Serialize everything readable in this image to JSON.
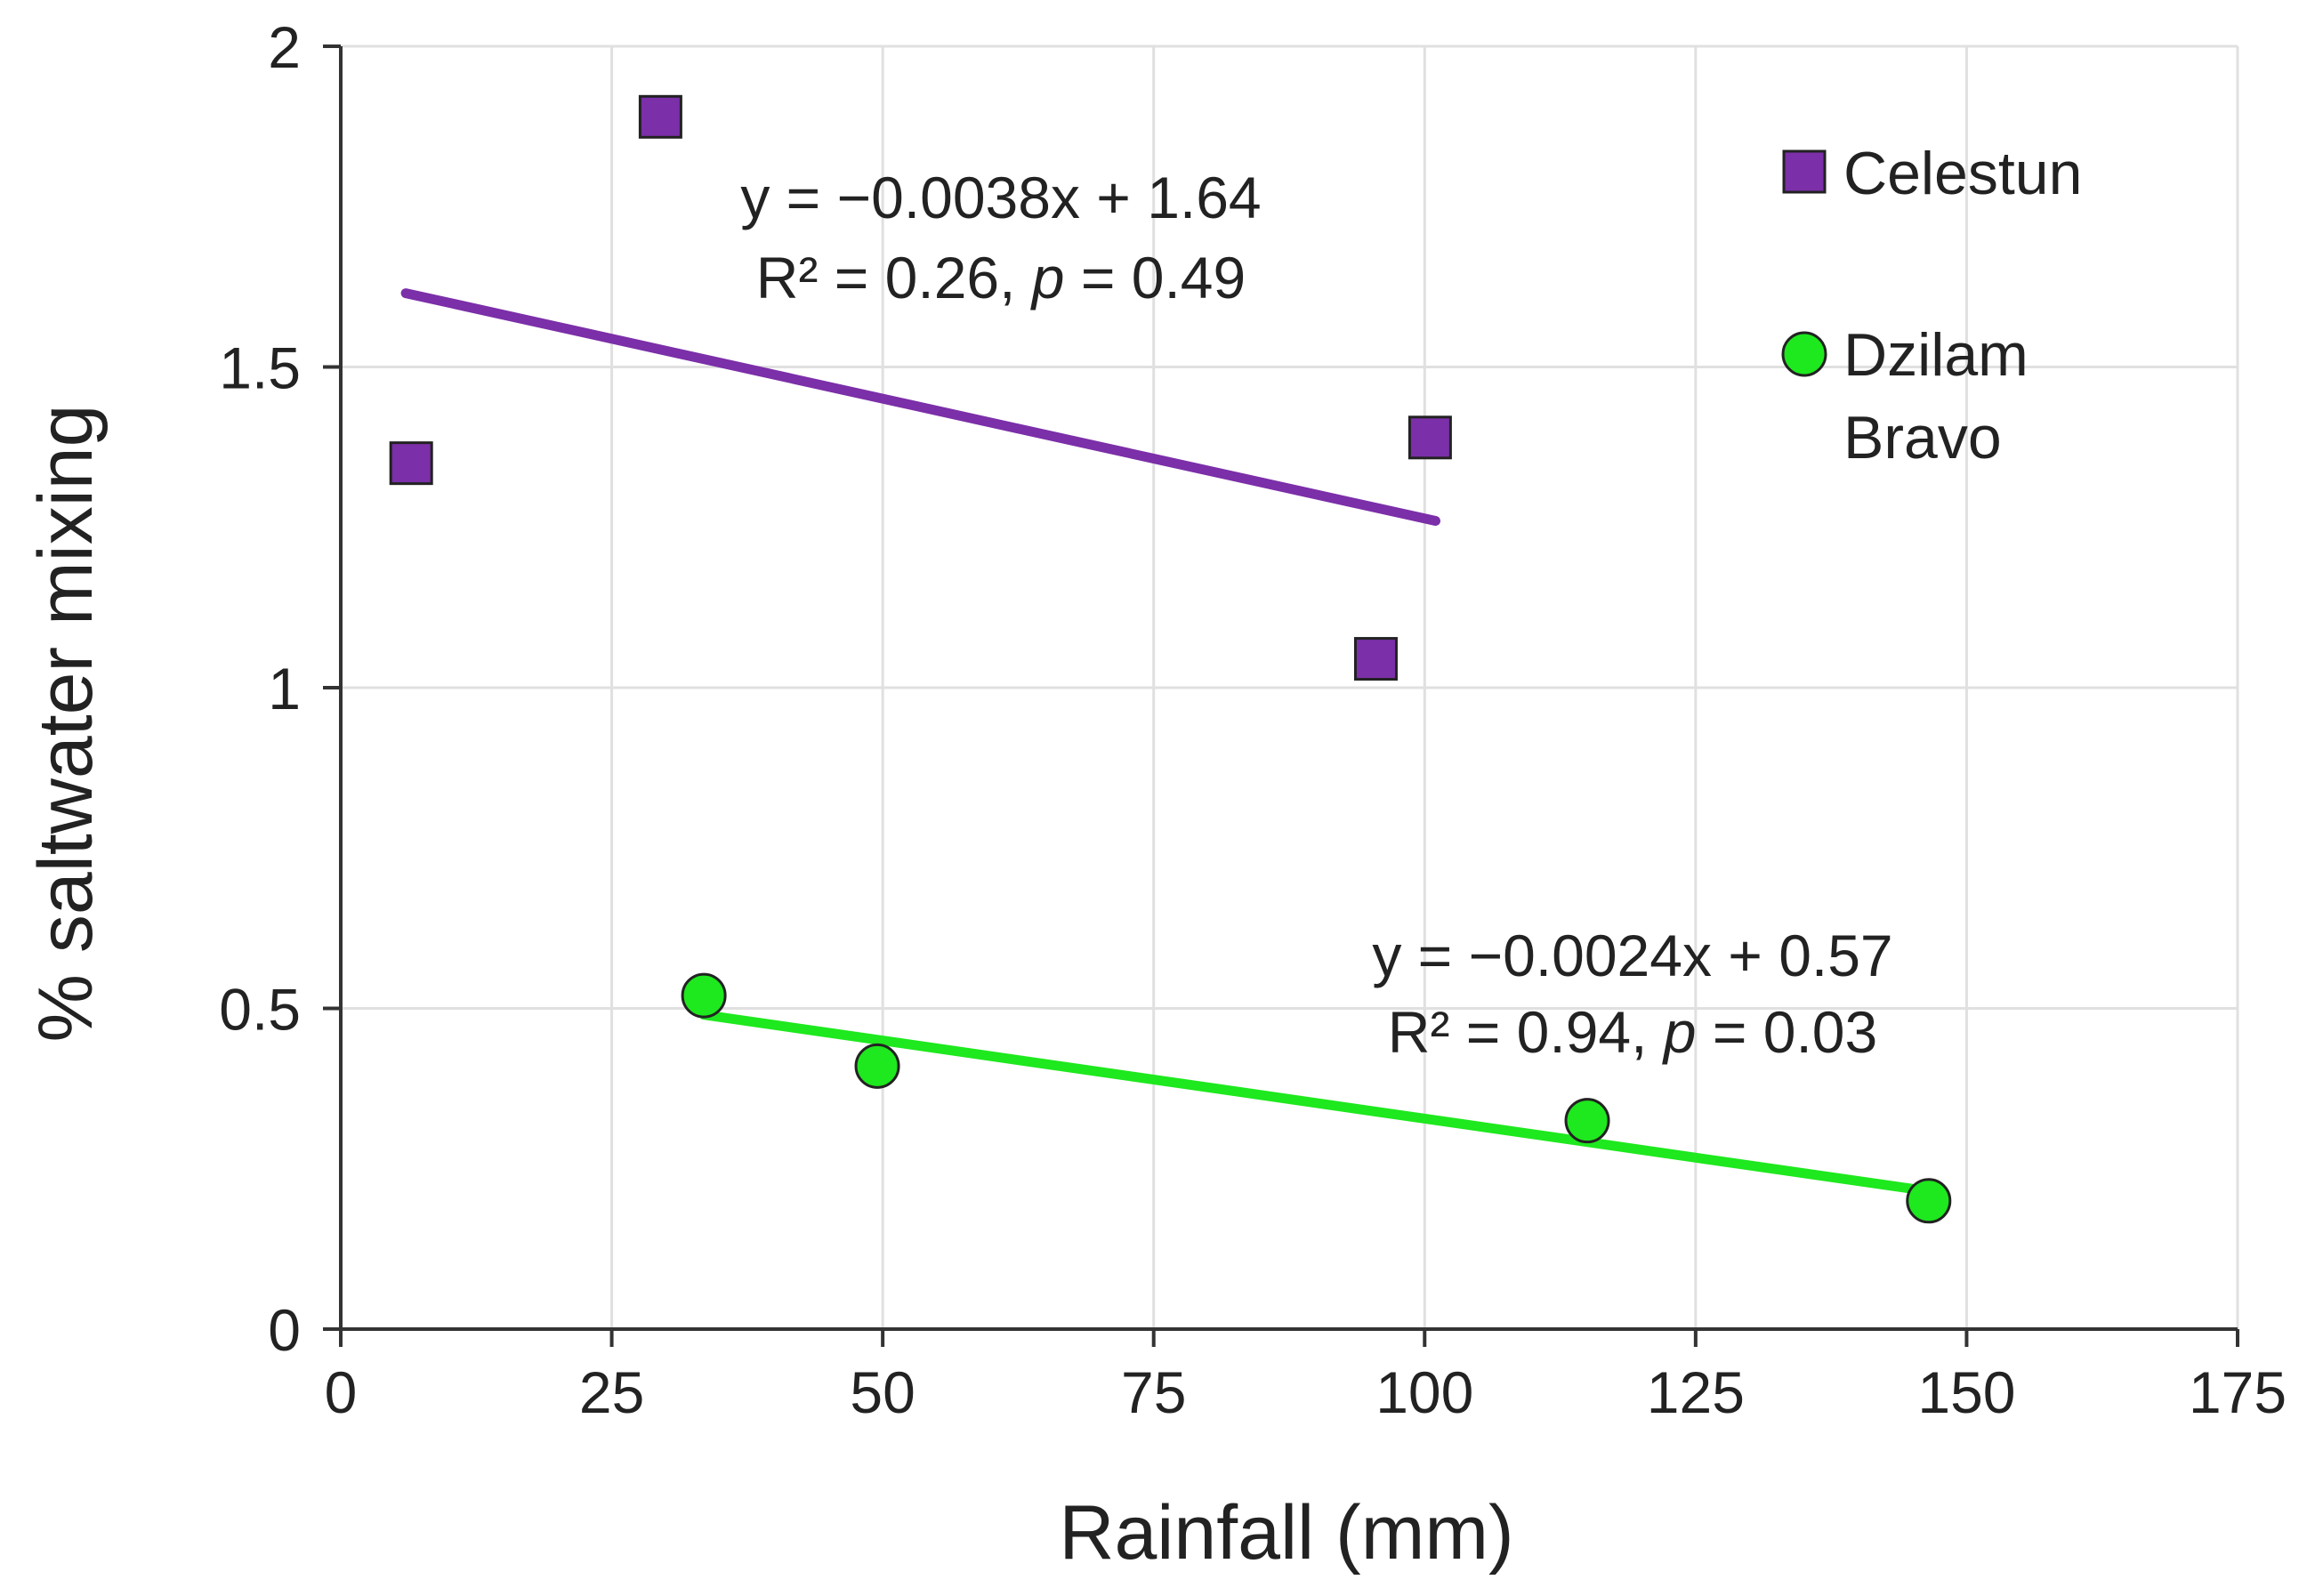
{
  "chart_data": {
    "type": "scatter",
    "xlabel": "Rainfall (mm)",
    "ylabel": "% saltwater mixing",
    "xlim": [
      0,
      175
    ],
    "ylim": [
      0,
      2
    ],
    "xticks": [
      0,
      25,
      50,
      75,
      100,
      125,
      150,
      175
    ],
    "yticks": [
      0,
      0.5,
      1,
      1.5,
      2
    ],
    "xtick_labels": [
      "0",
      "25",
      "50",
      "75",
      "100",
      "125",
      "150",
      "175"
    ],
    "ytick_labels": [
      "0",
      "0.5",
      "1",
      "1.5",
      "2"
    ],
    "grid": true,
    "legend_position": "top-right",
    "series": [
      {
        "name": "Celestun",
        "marker": "square",
        "color": "#7b2fa8",
        "points": [
          {
            "x": 6.5,
            "y": 1.35
          },
          {
            "x": 29.5,
            "y": 1.89
          },
          {
            "x": 95.5,
            "y": 1.045
          },
          {
            "x": 100.5,
            "y": 1.39
          }
        ],
        "trendline": {
          "x_range": [
            6,
            101
          ],
          "y_range": [
            1.615,
            1.26
          ],
          "color": "#7b2fa8"
        },
        "equation": {
          "line1": "y = −0.0038x + 1.64",
          "line2_prefix": "R² = 0.26, ",
          "line2_p": "p",
          "line2_suffix": " = 0.49"
        }
      },
      {
        "name": "Dzilam Bravo",
        "name_lines": [
          "Dzilam",
          "Bravo"
        ],
        "marker": "circle",
        "color": "#1ee81e",
        "points": [
          {
            "x": 33.5,
            "y": 0.52
          },
          {
            "x": 49.5,
            "y": 0.41
          },
          {
            "x": 115,
            "y": 0.325
          },
          {
            "x": 146.5,
            "y": 0.2
          }
        ],
        "trendline": {
          "x_range": [
            33.5,
            146.5
          ],
          "y_range": [
            0.49,
            0.215
          ],
          "color": "#1ee81e"
        },
        "equation": {
          "line1": "y = −0.0024x + 0.57",
          "line2_prefix": "R² = 0.94, ",
          "line2_p": "p",
          "line2_suffix": " = 0.03"
        }
      }
    ]
  }
}
